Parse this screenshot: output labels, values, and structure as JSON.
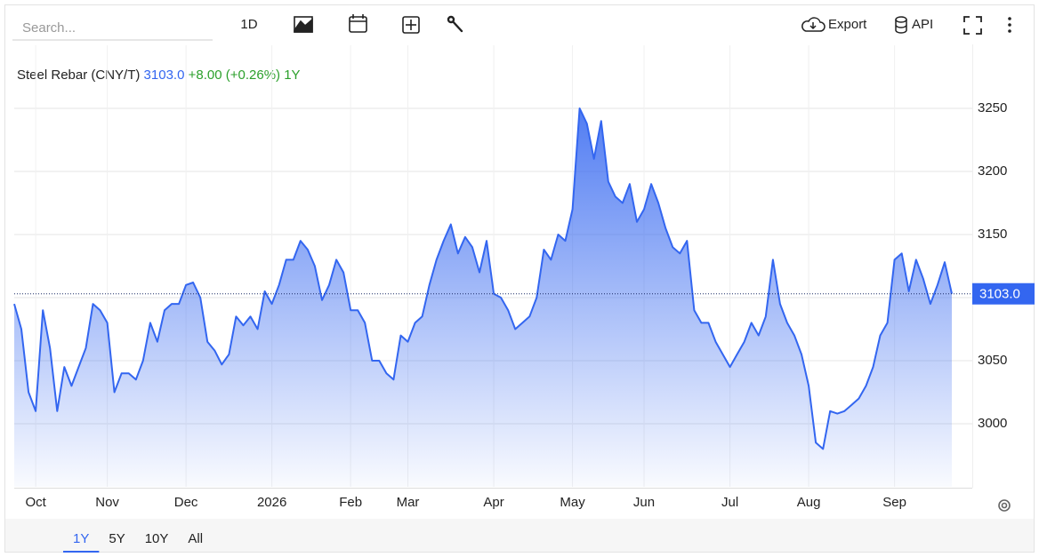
{
  "toolbar": {
    "search_placeholder": "Search...",
    "interval": "1D",
    "export": "Export",
    "api": "API"
  },
  "chart_data": {
    "type": "line",
    "header": {
      "price": "3103.0",
      "change": "+8.00",
      "change_pct": "(+0.26%)",
      "period": "1Y"
    },
    "categories": [
      null,
      null,
      null,
      "Oct",
      null,
      null,
      null,
      null,
      null,
      null,
      null,
      null,
      null,
      "Nov",
      null,
      null,
      null,
      null,
      null,
      null,
      null,
      null,
      null,
      null,
      "Dec",
      null,
      null,
      null,
      null,
      null,
      null,
      null,
      null,
      null,
      null,
      null,
      "2026",
      null,
      null,
      null,
      null,
      null,
      null,
      null,
      null,
      null,
      null,
      "Feb",
      null,
      null,
      null,
      null,
      null,
      null,
      null,
      "Mar",
      null,
      null,
      null,
      null,
      null,
      null,
      null,
      null,
      null,
      null,
      null,
      "Apr",
      null,
      null,
      null,
      null,
      null,
      null,
      null,
      null,
      null,
      null,
      "May",
      null,
      null,
      null,
      null,
      null,
      null,
      null,
      null,
      null,
      "Jun",
      null,
      null,
      null,
      null,
      null,
      null,
      null,
      null,
      null,
      null,
      null,
      "Jul",
      null,
      null,
      null,
      null,
      null,
      null,
      null,
      null,
      null,
      null,
      "Aug",
      null,
      null,
      null,
      null,
      null,
      null,
      null,
      null,
      null,
      null,
      null,
      "Sep",
      null,
      null,
      null,
      null,
      null,
      null,
      null,
      null
    ],
    "series": [
      {
        "name": "Steel Rebar (CNY/T)",
        "color": "#3366f0",
        "values": [
          3095,
          3075,
          3025,
          3010,
          3090,
          3060,
          3010,
          3045,
          3030,
          3045,
          3060,
          3095,
          3090,
          3080,
          3025,
          3040,
          3040,
          3035,
          3050,
          3080,
          3065,
          3090,
          3095,
          3095,
          3110,
          3112,
          3100,
          3065,
          3058,
          3047,
          3055,
          3085,
          3078,
          3085,
          3075,
          3105,
          3095,
          3110,
          3130,
          3130,
          3145,
          3138,
          3125,
          3098,
          3110,
          3130,
          3120,
          3090,
          3090,
          3080,
          3050,
          3050,
          3040,
          3035,
          3070,
          3065,
          3080,
          3085,
          3110,
          3130,
          3145,
          3158,
          3135,
          3148,
          3140,
          3120,
          3145,
          3103,
          3100,
          3090,
          3075,
          3080,
          3085,
          3100,
          3138,
          3130,
          3150,
          3145,
          3170,
          3250,
          3238,
          3210,
          3240,
          3192,
          3180,
          3175,
          3190,
          3160,
          3170,
          3190,
          3175,
          3155,
          3140,
          3135,
          3145,
          3090,
          3080,
          3080,
          3065,
          3055,
          3045,
          3055,
          3065,
          3080,
          3070,
          3085,
          3130,
          3095,
          3080,
          3070,
          3055,
          3030,
          2985,
          2980,
          3010,
          3008,
          3010,
          3015,
          3020,
          3030,
          3045,
          3070,
          3080,
          3130,
          3135,
          3105,
          3130,
          3115,
          3095,
          3110,
          3128,
          3103
        ]
      }
    ],
    "last_value_label": "3103.0",
    "ylim": [
      2950,
      3300
    ],
    "yticks": [
      3000,
      3050,
      3100,
      3150,
      3200,
      3250
    ],
    "grid": true
  },
  "range_tabs": [
    "1Y",
    "5Y",
    "10Y",
    "All"
  ]
}
